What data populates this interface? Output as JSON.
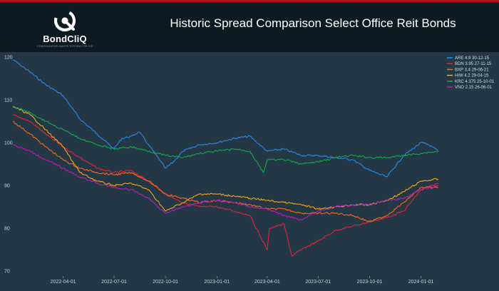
{
  "logo": {
    "name": "BondCliQ",
    "tagline": "CONSOLIDATED QUOTE SYSTEM FOR CORPORATE BONDS"
  },
  "colors": {
    "header_bg": "#0c1a22",
    "plot_bg": "#233745",
    "accent_bar": "#b3101e"
  },
  "chart_data": {
    "type": "line",
    "title": "Historic Spread Comparison Select Office Reit Bonds",
    "xlabel": "",
    "ylabel": "",
    "x_ticks": [
      "2022-04-01",
      "2022-07-01",
      "2022-10-01",
      "2023-01-01",
      "2023-04-01",
      "2023-07-01",
      "2023-10-01",
      "2024-01-01"
    ],
    "y_ticks": [
      70,
      80,
      90,
      100,
      110,
      120
    ],
    "ylim": [
      69,
      121
    ],
    "xlim": [
      "2022-01-01",
      "2024-02-10"
    ],
    "grid": false,
    "legend_position": "top-right",
    "series": [
      {
        "name": "ARE 4.9 30-12-15",
        "color": "#2f86e6",
        "points": [
          [
            "2022-01-01",
            119.4
          ],
          [
            "2022-02-01",
            116.5
          ],
          [
            "2022-03-01",
            113.5
          ],
          [
            "2022-04-01",
            111
          ],
          [
            "2022-05-01",
            105.5
          ],
          [
            "2022-06-01",
            102
          ],
          [
            "2022-07-01",
            98.5
          ],
          [
            "2022-07-15",
            101
          ],
          [
            "2022-08-01",
            101.5
          ],
          [
            "2022-08-15",
            102.5
          ],
          [
            "2022-09-01",
            99.5
          ],
          [
            "2022-09-20",
            96
          ],
          [
            "2022-10-01",
            94
          ],
          [
            "2022-10-15",
            95.5
          ],
          [
            "2022-11-01",
            98
          ],
          [
            "2022-12-01",
            99.5
          ],
          [
            "2023-01-01",
            100
          ],
          [
            "2023-02-01",
            101
          ],
          [
            "2023-03-01",
            101.5
          ],
          [
            "2023-04-01",
            98
          ],
          [
            "2023-05-01",
            98.5
          ],
          [
            "2023-06-01",
            97
          ],
          [
            "2023-07-01",
            97
          ],
          [
            "2023-08-01",
            96.5
          ],
          [
            "2023-09-01",
            96
          ],
          [
            "2023-10-01",
            93.5
          ],
          [
            "2023-11-01",
            92
          ],
          [
            "2023-12-01",
            97
          ],
          [
            "2024-01-01",
            100
          ],
          [
            "2024-01-15",
            99.5
          ],
          [
            "2024-02-01",
            98
          ]
        ]
      },
      {
        "name": "BDN 3.95 27-11-15",
        "color": "#e0223a",
        "points": [
          [
            "2022-01-01",
            106.5
          ],
          [
            "2022-02-01",
            105
          ],
          [
            "2022-03-01",
            102
          ],
          [
            "2022-04-01",
            99
          ],
          [
            "2022-05-01",
            96.5
          ],
          [
            "2022-06-01",
            94
          ],
          [
            "2022-07-01",
            93
          ],
          [
            "2022-08-01",
            93.5
          ],
          [
            "2022-09-01",
            91
          ],
          [
            "2022-10-01",
            88
          ],
          [
            "2022-11-01",
            86
          ],
          [
            "2022-12-01",
            85
          ],
          [
            "2023-01-01",
            85
          ],
          [
            "2023-02-01",
            84
          ],
          [
            "2023-03-01",
            83
          ],
          [
            "2023-03-20",
            78
          ],
          [
            "2023-04-01",
            75
          ],
          [
            "2023-04-05",
            80
          ],
          [
            "2023-05-01",
            81
          ],
          [
            "2023-05-15",
            73.5
          ],
          [
            "2023-06-01",
            75
          ],
          [
            "2023-07-01",
            77
          ],
          [
            "2023-08-01",
            79.5
          ],
          [
            "2023-09-01",
            80.5
          ],
          [
            "2023-10-01",
            81.5
          ],
          [
            "2023-11-01",
            82.5
          ],
          [
            "2023-12-01",
            84
          ],
          [
            "2024-01-01",
            89
          ],
          [
            "2024-02-01",
            90.5
          ]
        ]
      },
      {
        "name": "BXP 3.4 29-06-21",
        "color": "#f26a21",
        "points": [
          [
            "2022-01-01",
            105
          ],
          [
            "2022-02-01",
            102
          ],
          [
            "2022-03-01",
            99
          ],
          [
            "2022-04-01",
            96
          ],
          [
            "2022-05-01",
            94
          ],
          [
            "2022-06-01",
            93
          ],
          [
            "2022-07-01",
            92.5
          ],
          [
            "2022-08-01",
            93
          ],
          [
            "2022-09-01",
            91
          ],
          [
            "2022-10-01",
            88
          ],
          [
            "2022-11-01",
            87
          ],
          [
            "2022-12-01",
            86
          ],
          [
            "2023-01-01",
            86.5
          ],
          [
            "2023-02-01",
            86
          ],
          [
            "2023-03-01",
            85.5
          ],
          [
            "2023-04-01",
            84.5
          ],
          [
            "2023-05-01",
            84.5
          ],
          [
            "2023-06-01",
            83.5
          ],
          [
            "2023-07-01",
            83.5
          ],
          [
            "2023-08-01",
            83.5
          ],
          [
            "2023-09-01",
            83
          ],
          [
            "2023-10-01",
            81.5
          ],
          [
            "2023-11-01",
            83
          ],
          [
            "2023-12-01",
            86
          ],
          [
            "2024-01-01",
            89.5
          ],
          [
            "2024-02-01",
            89.5
          ]
        ]
      },
      {
        "name": "HIW 4.2 29-04-15",
        "color": "#f0a818",
        "points": [
          [
            "2022-01-01",
            108.5
          ],
          [
            "2022-02-01",
            106.5
          ],
          [
            "2022-03-01",
            103
          ],
          [
            "2022-04-01",
            99
          ],
          [
            "2022-05-01",
            93
          ],
          [
            "2022-06-01",
            91
          ],
          [
            "2022-07-01",
            90
          ],
          [
            "2022-08-01",
            90.5
          ],
          [
            "2022-09-01",
            89
          ],
          [
            "2022-10-01",
            84
          ],
          [
            "2022-11-01",
            86
          ],
          [
            "2022-12-01",
            88
          ],
          [
            "2023-01-01",
            88
          ],
          [
            "2023-02-01",
            87.5
          ],
          [
            "2023-03-01",
            87
          ],
          [
            "2023-04-01",
            86.5
          ],
          [
            "2023-05-01",
            86
          ],
          [
            "2023-06-01",
            85.5
          ],
          [
            "2023-07-01",
            84.5
          ],
          [
            "2023-08-01",
            85
          ],
          [
            "2023-09-01",
            85.5
          ],
          [
            "2023-10-01",
            85.5
          ],
          [
            "2023-11-01",
            86.5
          ],
          [
            "2023-12-01",
            88.5
          ],
          [
            "2024-01-01",
            91
          ],
          [
            "2024-02-01",
            91.5
          ]
        ]
      },
      {
        "name": "KRC 4.375 25-10-01",
        "color": "#12a84a",
        "points": [
          [
            "2022-01-01",
            108.5
          ],
          [
            "2022-02-01",
            107
          ],
          [
            "2022-03-01",
            105
          ],
          [
            "2022-04-01",
            103
          ],
          [
            "2022-05-01",
            101
          ],
          [
            "2022-06-01",
            99.5
          ],
          [
            "2022-07-01",
            98.5
          ],
          [
            "2022-08-01",
            99
          ],
          [
            "2022-09-01",
            98
          ],
          [
            "2022-10-01",
            97
          ],
          [
            "2022-11-01",
            96.5
          ],
          [
            "2022-12-01",
            97.5
          ],
          [
            "2023-01-01",
            98
          ],
          [
            "2023-02-01",
            98.5
          ],
          [
            "2023-03-01",
            98
          ],
          [
            "2023-03-25",
            93
          ],
          [
            "2023-04-01",
            96
          ],
          [
            "2023-05-01",
            96
          ],
          [
            "2023-06-01",
            95
          ],
          [
            "2023-07-01",
            95.5
          ],
          [
            "2023-08-01",
            96.5
          ],
          [
            "2023-09-01",
            97
          ],
          [
            "2023-10-01",
            96.5
          ],
          [
            "2023-11-01",
            96.5
          ],
          [
            "2023-12-01",
            97
          ],
          [
            "2024-01-01",
            97.5
          ],
          [
            "2024-02-01",
            98
          ]
        ]
      },
      {
        "name": "VNO 2.15 26-06-01",
        "color": "#b321b3",
        "points": [
          [
            "2022-01-01",
            99.5
          ],
          [
            "2022-02-01",
            98
          ],
          [
            "2022-03-01",
            96
          ],
          [
            "2022-04-01",
            94
          ],
          [
            "2022-05-01",
            92
          ],
          [
            "2022-06-01",
            90.5
          ],
          [
            "2022-07-01",
            89.5
          ],
          [
            "2022-08-01",
            89
          ],
          [
            "2022-09-01",
            87
          ],
          [
            "2022-10-01",
            83.5
          ],
          [
            "2022-11-01",
            85
          ],
          [
            "2022-12-01",
            86
          ],
          [
            "2023-01-01",
            86.5
          ],
          [
            "2023-02-01",
            86
          ],
          [
            "2023-03-01",
            85
          ],
          [
            "2023-04-01",
            84.5
          ],
          [
            "2023-05-01",
            83
          ],
          [
            "2023-06-01",
            82
          ],
          [
            "2023-07-01",
            84
          ],
          [
            "2023-08-01",
            85
          ],
          [
            "2023-09-01",
            85.5
          ],
          [
            "2023-10-01",
            85.5
          ],
          [
            "2023-11-01",
            86.5
          ],
          [
            "2023-12-01",
            87
          ],
          [
            "2024-01-01",
            89
          ],
          [
            "2024-02-01",
            90
          ]
        ]
      }
    ]
  }
}
